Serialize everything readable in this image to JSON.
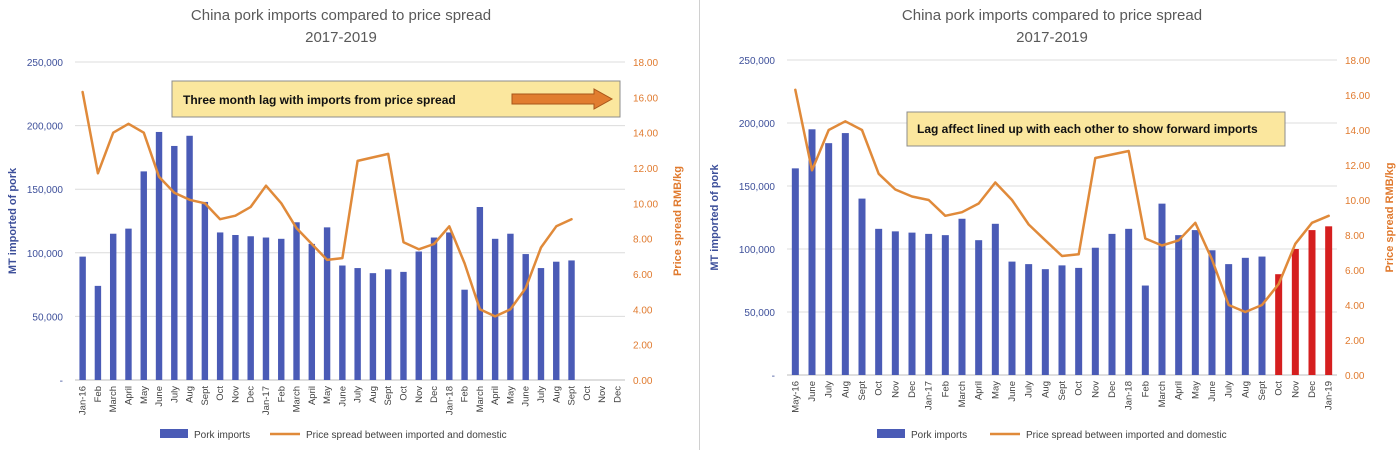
{
  "colors": {
    "bar": "#4a5bb6",
    "bar_highlight": "#d51f1f",
    "line": "#e08a3a",
    "axis_left": "#3d4f9a",
    "axis_right": "#e07a2e",
    "grid": "#dcdcdc",
    "callout_fill": "#fbe79e",
    "arrow": "#e17d2f",
    "title": "#595959"
  },
  "chart_data": [
    {
      "type": "bar",
      "title": "China pork imports compared to price spread",
      "subtitle": "2017-2019",
      "ylabel": "MT imported of pork",
      "y2label": "Price spread RMB/kg",
      "ylim": [
        0,
        250000
      ],
      "y2lim": [
        0,
        18
      ],
      "yticks": [
        "-",
        "50,000",
        "100,000",
        "150,000",
        "200,000",
        "250,000"
      ],
      "y2ticks": [
        "0.00",
        "2.00",
        "4.00",
        "6.00",
        "8.00",
        "10.00",
        "12.00",
        "14.00",
        "16.00",
        "18.00"
      ],
      "categories": [
        "Jan-16",
        "Feb",
        "March",
        "April",
        "May",
        "June",
        "July",
        "Aug",
        "Sept",
        "Oct",
        "Nov",
        "Dec",
        "Jan-17",
        "Feb",
        "March",
        "April",
        "May",
        "June",
        "July",
        "Aug",
        "Sept",
        "Oct",
        "Nov",
        "Dec",
        "Jan-18",
        "Feb",
        "March",
        "April",
        "May",
        "June",
        "July",
        "Aug",
        "Sept",
        "Oct",
        "Nov",
        "Dec"
      ],
      "series": [
        {
          "name": "Pork imports",
          "kind": "bar",
          "values": [
            97000,
            74000,
            115000,
            119000,
            164000,
            195000,
            184000,
            192000,
            140000,
            116000,
            114000,
            113000,
            112000,
            111000,
            124000,
            107000,
            120000,
            90000,
            88000,
            84000,
            87000,
            85000,
            101000,
            112000,
            116000,
            71000,
            136000,
            111000,
            115000,
            99000,
            88000,
            93000,
            94000,
            null,
            null,
            null
          ]
        },
        {
          "name": "Price spread between imported and domestic",
          "kind": "line",
          "axis": "right",
          "values": [
            16.3,
            11.7,
            14.0,
            14.5,
            14.0,
            11.5,
            10.6,
            10.2,
            10.0,
            9.1,
            9.3,
            9.8,
            11.0,
            10.0,
            8.6,
            7.7,
            6.8,
            6.9,
            12.4,
            12.6,
            12.8,
            7.8,
            7.4,
            7.7,
            8.7,
            6.6,
            4.0,
            3.6,
            4.0,
            5.2,
            7.5,
            8.7,
            9.1,
            null,
            null,
            null
          ]
        }
      ],
      "annotation": "Three month lag with imports from price spread",
      "legend": "bottom"
    },
    {
      "type": "bar",
      "title": "China pork imports compared to price spread",
      "subtitle": "2017-2019",
      "ylabel": "MT imported of pork",
      "y2label": "Price spread RMB/kg",
      "ylim": [
        0,
        250000
      ],
      "y2lim": [
        0,
        18
      ],
      "yticks": [
        "-",
        "50,000",
        "100,000",
        "150,000",
        "200,000",
        "250,000"
      ],
      "y2ticks": [
        "0.00",
        "2.00",
        "4.00",
        "6.00",
        "8.00",
        "10.00",
        "12.00",
        "14.00",
        "16.00",
        "18.00"
      ],
      "categories": [
        "May-16",
        "June",
        "July",
        "Aug",
        "Sept",
        "Oct",
        "Nov",
        "Dec",
        "Jan-17",
        "Feb",
        "March",
        "April",
        "May",
        "June",
        "July",
        "Aug",
        "Sept",
        "Oct",
        "Nov",
        "Dec",
        "Jan-18",
        "Feb",
        "March",
        "April",
        "May",
        "June",
        "July",
        "Aug",
        "Sept",
        "Oct",
        "Nov",
        "Dec",
        "Jan-19"
      ],
      "series": [
        {
          "name": "Pork imports",
          "kind": "bar",
          "values": [
            164000,
            195000,
            184000,
            192000,
            140000,
            116000,
            114000,
            113000,
            112000,
            111000,
            124000,
            107000,
            120000,
            90000,
            88000,
            84000,
            87000,
            85000,
            101000,
            112000,
            116000,
            71000,
            136000,
            111000,
            115000,
            99000,
            88000,
            93000,
            94000,
            80000,
            100000,
            115000,
            118000
          ],
          "highlight_from_index": 29
        },
        {
          "name": "Price spread between imported and domestic",
          "kind": "line",
          "axis": "right",
          "values": [
            16.3,
            11.7,
            14.0,
            14.5,
            14.0,
            11.5,
            10.6,
            10.2,
            10.0,
            9.1,
            9.3,
            9.8,
            11.0,
            10.0,
            8.6,
            7.7,
            6.8,
            6.9,
            12.4,
            12.6,
            12.8,
            7.8,
            7.4,
            7.7,
            8.7,
            6.6,
            4.0,
            3.6,
            4.0,
            5.2,
            7.5,
            8.7,
            9.1
          ]
        }
      ],
      "annotation": "Lag affect lined up with each other to show forward imports",
      "legend": "bottom"
    }
  ]
}
